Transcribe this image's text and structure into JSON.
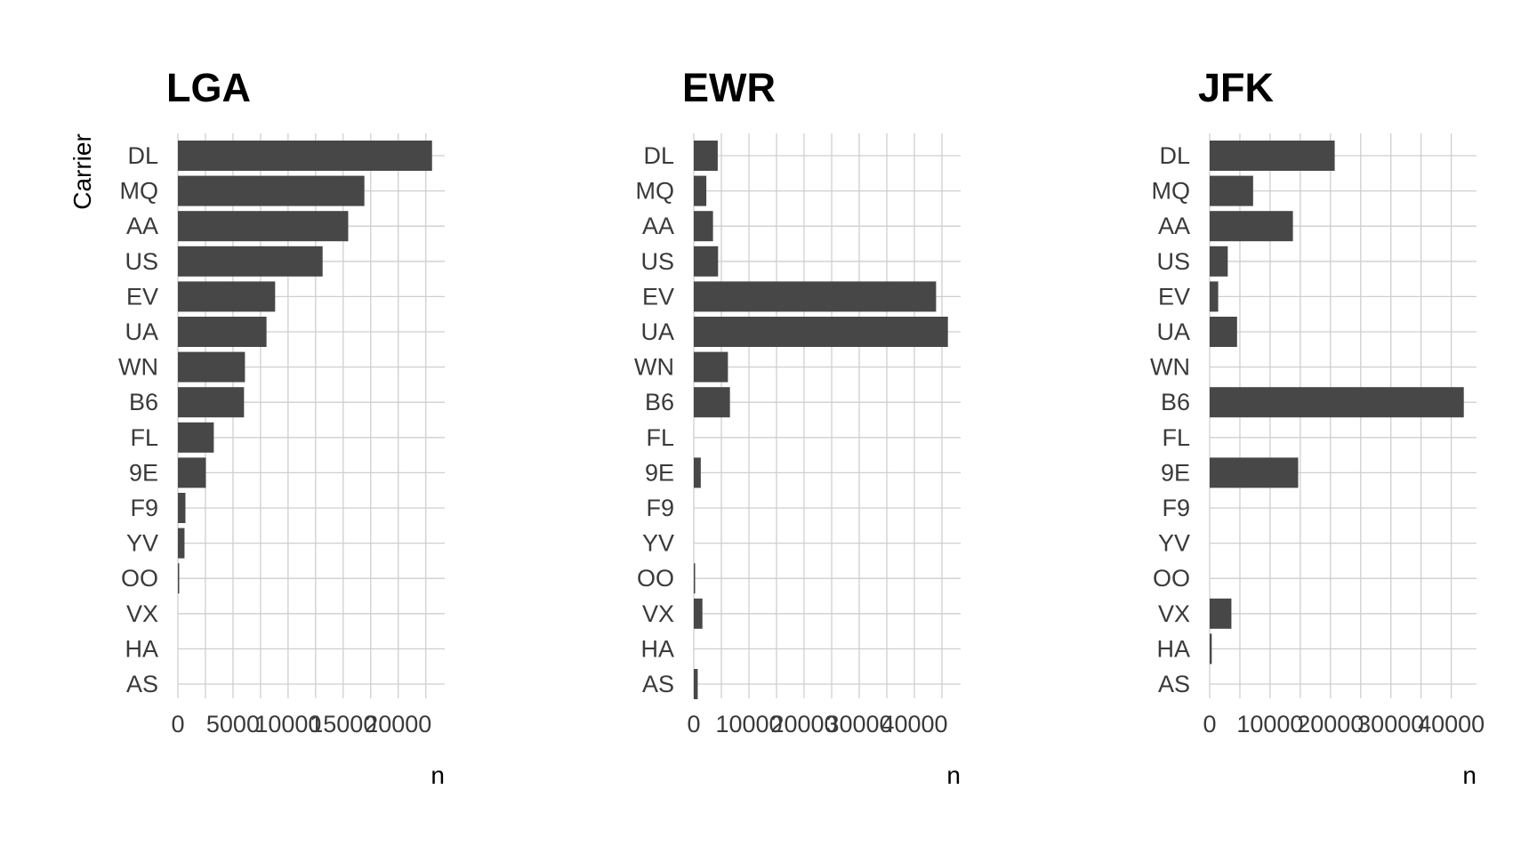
{
  "colors": {
    "bar": "#474747",
    "grid": "#cfcfcf",
    "text": "#3a3a3a",
    "title": "#000000"
  },
  "chart_data": [
    {
      "type": "bar",
      "orientation": "horizontal",
      "title": "LGA",
      "ylabel": "Carrier",
      "xlabel": "n",
      "categories": [
        "DL",
        "MQ",
        "AA",
        "US",
        "EV",
        "UA",
        "WN",
        "B6",
        "FL",
        "9E",
        "F9",
        "YV",
        "OO",
        "VX",
        "HA",
        "AS"
      ],
      "values": [
        23067,
        16928,
        15459,
        13136,
        8826,
        8044,
        6087,
        6002,
        3260,
        2541,
        685,
        601,
        26,
        0,
        0,
        0
      ],
      "xticks": [
        0,
        5000,
        10000,
        15000,
        20000
      ],
      "xtick_labels": [
        "0",
        "5000",
        "10000",
        "15000",
        "20000"
      ],
      "xlim": [
        0,
        24220
      ],
      "grid": true
    },
    {
      "type": "bar",
      "orientation": "horizontal",
      "title": "EWR",
      "ylabel": "",
      "xlabel": "n",
      "categories": [
        "DL",
        "MQ",
        "AA",
        "US",
        "EV",
        "UA",
        "WN",
        "B6",
        "FL",
        "9E",
        "F9",
        "YV",
        "OO",
        "VX",
        "HA",
        "AS"
      ],
      "values": [
        4342,
        2276,
        3487,
        4405,
        43939,
        46087,
        6188,
        6557,
        0,
        1268,
        0,
        0,
        6,
        1566,
        0,
        714
      ],
      "xticks": [
        0,
        10000,
        20000,
        30000,
        40000
      ],
      "xtick_labels": [
        "0",
        "10000",
        "20000",
        "30000",
        "40000"
      ],
      "xlim": [
        0,
        48390
      ],
      "grid": true
    },
    {
      "type": "bar",
      "orientation": "horizontal",
      "title": "JFK",
      "ylabel": "",
      "xlabel": "n",
      "categories": [
        "DL",
        "MQ",
        "AA",
        "US",
        "EV",
        "UA",
        "WN",
        "B6",
        "FL",
        "9E",
        "F9",
        "YV",
        "OO",
        "VX",
        "HA",
        "AS"
      ],
      "values": [
        20701,
        7193,
        13783,
        2995,
        1408,
        4534,
        0,
        42076,
        0,
        14651,
        0,
        0,
        0,
        3596,
        342,
        0
      ],
      "xticks": [
        0,
        10000,
        20000,
        30000,
        40000
      ],
      "xtick_labels": [
        "0",
        "10000",
        "20000",
        "30000",
        "40000"
      ],
      "xlim": [
        0,
        44180
      ],
      "grid": true
    }
  ]
}
